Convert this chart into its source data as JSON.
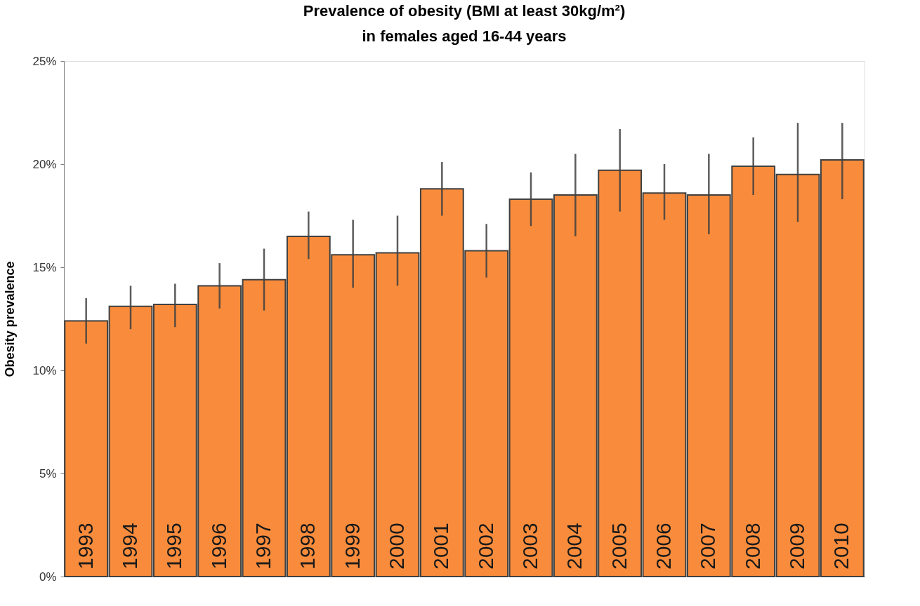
{
  "chart_data": {
    "type": "bar",
    "title": "Prevalence of obesity (BMI at least 30kg/m²)",
    "subtitle": "in females aged 16-44 years",
    "ylabel": "Obesity prevalence",
    "categories": [
      "1993",
      "1994",
      "1995",
      "1996",
      "1997",
      "1998",
      "1999",
      "2000",
      "2001",
      "2002",
      "2003",
      "2004",
      "2005",
      "2006",
      "2007",
      "2008",
      "2009",
      "2010"
    ],
    "values": [
      12.4,
      13.1,
      13.2,
      14.1,
      14.4,
      16.5,
      15.6,
      15.7,
      18.8,
      15.8,
      18.3,
      18.5,
      19.7,
      18.6,
      18.5,
      19.9,
      19.5,
      20.2
    ],
    "errors": [
      [
        11.3,
        13.5
      ],
      [
        12.0,
        14.1
      ],
      [
        12.1,
        14.2
      ],
      [
        13.0,
        15.2
      ],
      [
        12.9,
        15.9
      ],
      [
        15.4,
        17.7
      ],
      [
        14.0,
        17.3
      ],
      [
        14.1,
        17.5
      ],
      [
        17.5,
        20.1
      ],
      [
        14.5,
        17.1
      ],
      [
        17.0,
        19.6
      ],
      [
        16.5,
        20.5
      ],
      [
        17.7,
        21.7
      ],
      [
        17.3,
        20.0
      ],
      [
        16.6,
        20.5
      ],
      [
        18.5,
        21.3
      ],
      [
        17.2,
        22.0
      ],
      [
        18.3,
        22.0
      ]
    ],
    "color": "#f98c3c",
    "ylim": [
      0,
      25
    ],
    "yticks": [
      {
        "value": 0,
        "label": "0%"
      },
      {
        "value": 5,
        "label": "5%"
      },
      {
        "value": 10,
        "label": "10%"
      },
      {
        "value": 15,
        "label": "15%"
      },
      {
        "value": 20,
        "label": "20%"
      },
      {
        "value": 25,
        "label": "25%"
      }
    ],
    "grid": false,
    "tick_labels": "y"
  }
}
